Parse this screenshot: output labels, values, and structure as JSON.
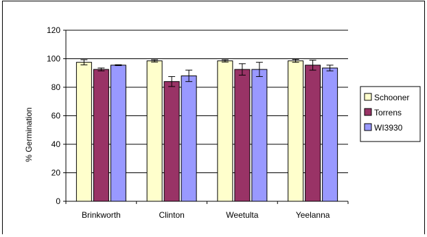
{
  "chart_data": {
    "type": "bar",
    "ylabel": "% Germination",
    "xlabel": "",
    "ylim": [
      0,
      120
    ],
    "yticks": [
      0,
      20,
      40,
      60,
      80,
      100,
      120
    ],
    "grid": true,
    "legend_position": "right",
    "categories": [
      "Brinkworth",
      "Clinton",
      "Weetulta",
      "Yeelanna"
    ],
    "series": [
      {
        "name": "Schooner",
        "color": "#FFFFCC",
        "values": [
          97.5,
          98.5,
          98.5,
          98.5
        ],
        "errors": [
          1.8,
          0.8,
          0.8,
          1.0
        ]
      },
      {
        "name": "Torrens",
        "color": "#993366",
        "values": [
          92.5,
          84.0,
          92.5,
          95.5
        ],
        "errors": [
          1.0,
          3.5,
          4.0,
          3.5
        ]
      },
      {
        "name": "WI3930",
        "color": "#9999FF",
        "values": [
          95.5,
          88.0,
          92.5,
          93.5
        ],
        "errors": [
          0.3,
          4.0,
          5.0,
          2.0
        ]
      }
    ]
  }
}
